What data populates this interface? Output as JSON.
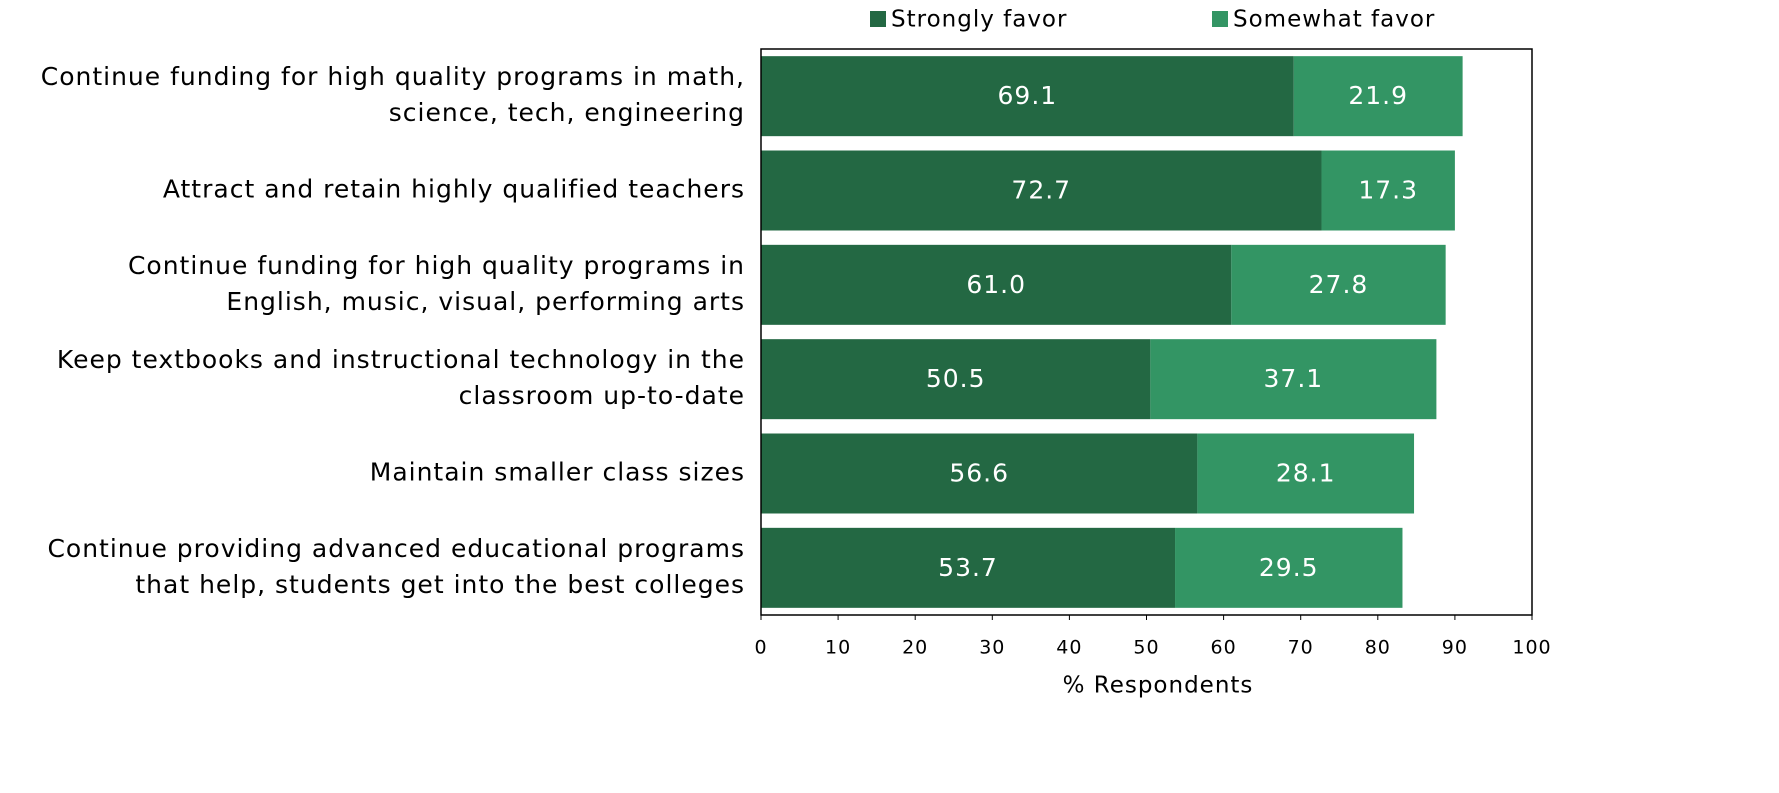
{
  "chart_data": {
    "type": "stacked_bar_horizontal",
    "categories": [
      [
        "Continue funding for high quality programs in math,",
        "science, tech, engineering"
      ],
      [
        "Attract and retain highly qualified teachers"
      ],
      [
        "Continue funding for high quality programs in",
        "English, music, visual, performing arts"
      ],
      [
        "Keep textbooks and instructional technology in the",
        "classroom up-to-date"
      ],
      [
        "Maintain smaller class sizes"
      ],
      [
        "Continue providing advanced educational programs",
        "that help, students get into the best colleges"
      ]
    ],
    "series": [
      {
        "name": "Strongly favor",
        "color": "#236843",
        "values": [
          69.1,
          72.7,
          61.0,
          50.5,
          56.6,
          53.7
        ],
        "value_labels": [
          "69.1",
          "72.7",
          "61.0",
          "50.5",
          "56.6",
          "53.7"
        ]
      },
      {
        "name": "Somewhat favor",
        "color": "#339564",
        "values": [
          21.9,
          17.3,
          27.8,
          37.1,
          28.1,
          29.5
        ],
        "value_labels": [
          "21.9",
          "17.3",
          "27.8",
          "37.1",
          "28.1",
          "29.5"
        ]
      }
    ],
    "xlim": [
      0,
      100
    ],
    "xticks": [
      0,
      10,
      20,
      30,
      40,
      50,
      60,
      70,
      80,
      90,
      100
    ],
    "xlabel": "% Respondents",
    "legend": "top"
  }
}
